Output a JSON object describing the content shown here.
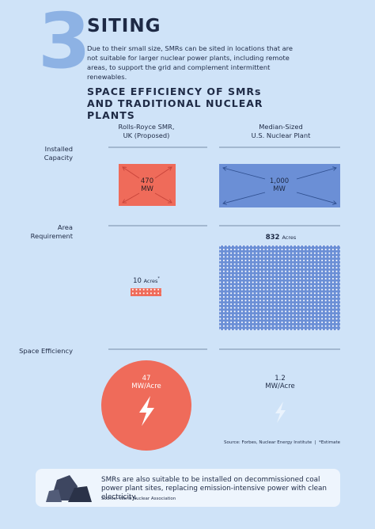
{
  "header": {
    "number": "3",
    "title": "SITING",
    "intro": "Due to their small size, SMRs can be sited in locations that are not suitable for larger nuclear power plants, including remote areas, to support the grid and complement intermittent renewables."
  },
  "section_title": "SPACE EFFICIENCY OF SMRs AND TRADITIONAL NUCLEAR PLANTS",
  "row_labels": [
    "Installed Capacity",
    "Area Requirement",
    "Space Efficiency"
  ],
  "columns": [
    {
      "heading_lines": [
        "Rolls-Royce SMR,",
        "UK (Proposed)"
      ],
      "capacity": 470,
      "capacity_unit": "MW",
      "area": 10,
      "area_unit": "Acres",
      "area_note": "*",
      "efficiency": 47,
      "efficiency_unit": "MW/Acre"
    },
    {
      "heading_lines": [
        "Median-Sized",
        "U.S. Nuclear Plant"
      ],
      "capacity": "1,000",
      "capacity_unit": "MW",
      "area": 832,
      "area_unit": "Acres",
      "efficiency": 1.2,
      "efficiency_unit": "MW/Acre"
    }
  ],
  "source": "Source: Forbes, Nuclear Energy Institute  |  *Estimate",
  "footer": {
    "text": "SMRs are also suitable to be installed on decommissioned coal power plant sites, replacing emission-intensive power with clean electricity.",
    "source": "Source: World Nuclear Association"
  }
}
